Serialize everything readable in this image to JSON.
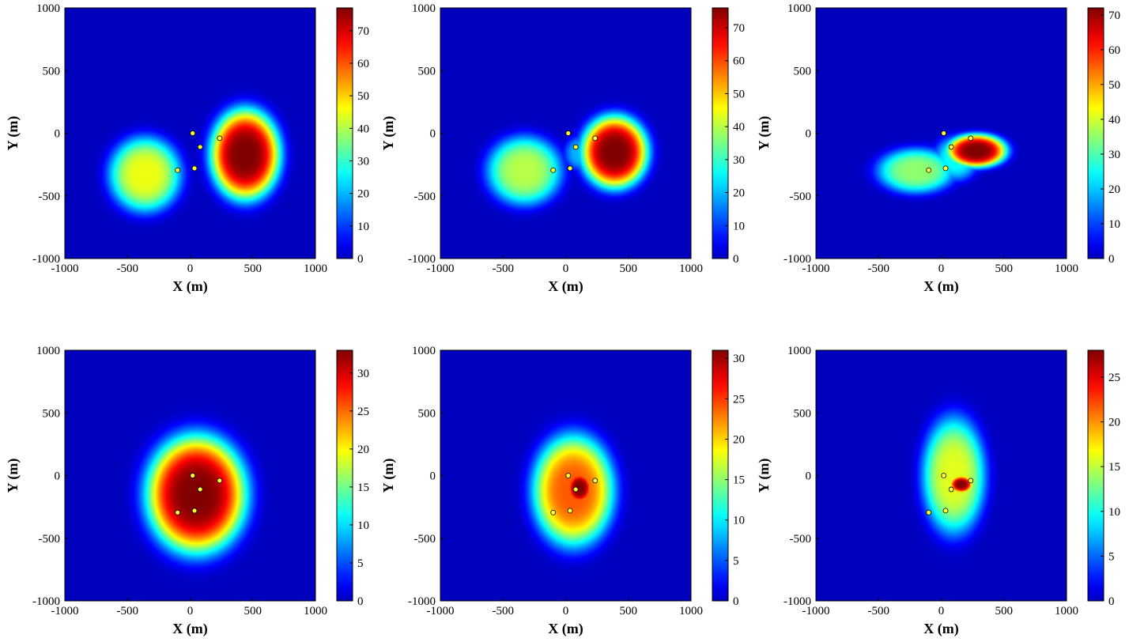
{
  "figure": {
    "rows": 2,
    "cols": 3,
    "background_color": "#1a1a8c",
    "colormap": "jet"
  },
  "chart_data": [
    {
      "type": "heatmap",
      "xlabel": "X (m)",
      "ylabel": "Y (m)",
      "xlim": [
        -1000,
        1000
      ],
      "ylim": [
        -1000,
        1000
      ],
      "xticks": [
        -1000,
        -500,
        0,
        500,
        1000
      ],
      "yticks": [
        -1000,
        -500,
        0,
        500,
        1000
      ],
      "colorbar": {
        "min": 0,
        "max": 77,
        "ticks": [
          0,
          10,
          20,
          30,
          40,
          50,
          60,
          70
        ]
      },
      "sensors": [
        [
          20,
          0
        ],
        [
          80,
          -110
        ],
        [
          235,
          -40
        ],
        [
          -100,
          -295
        ],
        [
          35,
          -280
        ]
      ],
      "blobs": [
        {
          "x": 440,
          "y": -170,
          "sx": 230,
          "sy": 300,
          "peak": 77
        },
        {
          "x": -360,
          "y": -330,
          "sx": 240,
          "sy": 250,
          "peak": 45
        }
      ]
    },
    {
      "type": "heatmap",
      "xlabel": "X (m)",
      "ylabel": "Y (m)",
      "xlim": [
        -1000,
        1000
      ],
      "ylim": [
        -1000,
        1000
      ],
      "xticks": [
        -1000,
        -500,
        0,
        500,
        1000
      ],
      "yticks": [
        -1000,
        -500,
        0,
        500,
        1000
      ],
      "colorbar": {
        "min": 0,
        "max": 76,
        "ticks": [
          0,
          10,
          20,
          30,
          40,
          50,
          60,
          70
        ]
      },
      "sensors": [
        [
          20,
          0
        ],
        [
          80,
          -110
        ],
        [
          235,
          -40
        ],
        [
          -100,
          -295
        ],
        [
          35,
          -280
        ]
      ],
      "blobs": [
        {
          "x": 390,
          "y": -150,
          "sx": 220,
          "sy": 240,
          "peak": 76
        },
        {
          "x": -330,
          "y": -300,
          "sx": 250,
          "sy": 230,
          "peak": 40
        },
        {
          "x": 130,
          "y": -160,
          "sx": 120,
          "sy": 120,
          "peak": 20
        }
      ]
    },
    {
      "type": "heatmap",
      "xlabel": "X (m)",
      "ylabel": "Y (m)",
      "xlim": [
        -1000,
        1000
      ],
      "ylim": [
        -1000,
        1000
      ],
      "xticks": [
        -1000,
        -500,
        0,
        500,
        1000
      ],
      "yticks": [
        -1000,
        -500,
        0,
        500,
        1000
      ],
      "colorbar": {
        "min": 0,
        "max": 72,
        "ticks": [
          0,
          10,
          20,
          30,
          40,
          50,
          60,
          70
        ]
      },
      "sensors": [
        [
          20,
          0
        ],
        [
          80,
          -110
        ],
        [
          235,
          -40
        ],
        [
          -100,
          -295
        ],
        [
          35,
          -280
        ]
      ],
      "blobs": [
        {
          "x": 280,
          "y": -140,
          "sx": 200,
          "sy": 110,
          "peak": 72
        },
        {
          "x": -200,
          "y": -300,
          "sx": 260,
          "sy": 150,
          "peak": 35
        },
        {
          "x": 120,
          "y": -200,
          "sx": 150,
          "sy": 150,
          "peak": 25
        }
      ]
    },
    {
      "type": "heatmap",
      "xlabel": "X (m)",
      "ylabel": "Y (m)",
      "xlim": [
        -1000,
        1000
      ],
      "ylim": [
        -1000,
        1000
      ],
      "xticks": [
        -1000,
        -500,
        0,
        500,
        1000
      ],
      "yticks": [
        -1000,
        -500,
        0,
        500,
        1000
      ],
      "colorbar": {
        "min": 0,
        "max": 33,
        "ticks": [
          0,
          5,
          10,
          15,
          20,
          25,
          30
        ]
      },
      "sensors": [
        [
          20,
          0
        ],
        [
          80,
          -110
        ],
        [
          235,
          -40
        ],
        [
          -100,
          -295
        ],
        [
          35,
          -280
        ]
      ],
      "blobs": [
        {
          "x": 50,
          "y": -150,
          "sx": 330,
          "sy": 390,
          "peak": 33
        }
      ]
    },
    {
      "type": "heatmap",
      "xlabel": "X (m)",
      "ylabel": "Y (m)",
      "xlim": [
        -1000,
        1000
      ],
      "ylim": [
        -1000,
        1000
      ],
      "xticks": [
        -1000,
        -500,
        0,
        500,
        1000
      ],
      "yticks": [
        -1000,
        -500,
        0,
        500,
        1000
      ],
      "colorbar": {
        "min": 0,
        "max": 31,
        "ticks": [
          0,
          5,
          10,
          15,
          20,
          25,
          30
        ]
      },
      "sensors": [
        [
          20,
          0
        ],
        [
          80,
          -110
        ],
        [
          235,
          -40
        ],
        [
          -100,
          -295
        ],
        [
          35,
          -280
        ]
      ],
      "blobs": [
        {
          "x": 60,
          "y": -120,
          "sx": 270,
          "sy": 370,
          "peak": 24
        },
        {
          "x": 110,
          "y": -100,
          "sx": 90,
          "sy": 110,
          "peak": 31
        },
        {
          "x": -20,
          "y": -260,
          "sx": 110,
          "sy": 80,
          "peak": 12
        }
      ]
    },
    {
      "type": "heatmap",
      "xlabel": "X (m)",
      "ylabel": "Y (m)",
      "xlim": [
        -1000,
        1000
      ],
      "ylim": [
        -1000,
        1000
      ],
      "xticks": [
        -1000,
        -500,
        0,
        500,
        1000
      ],
      "yticks": [
        -1000,
        -500,
        0,
        500,
        1000
      ],
      "colorbar": {
        "min": 0,
        "max": 28,
        "ticks": [
          0,
          5,
          10,
          15,
          20,
          25
        ]
      },
      "sensors": [
        [
          20,
          0
        ],
        [
          80,
          -110
        ],
        [
          235,
          -40
        ],
        [
          -100,
          -295
        ],
        [
          35,
          -280
        ]
      ],
      "blobs": [
        {
          "x": 100,
          "y": 0,
          "sx": 210,
          "sy": 390,
          "peak": 16
        },
        {
          "x": 160,
          "y": -70,
          "sx": 80,
          "sy": 60,
          "peak": 28
        }
      ]
    }
  ]
}
